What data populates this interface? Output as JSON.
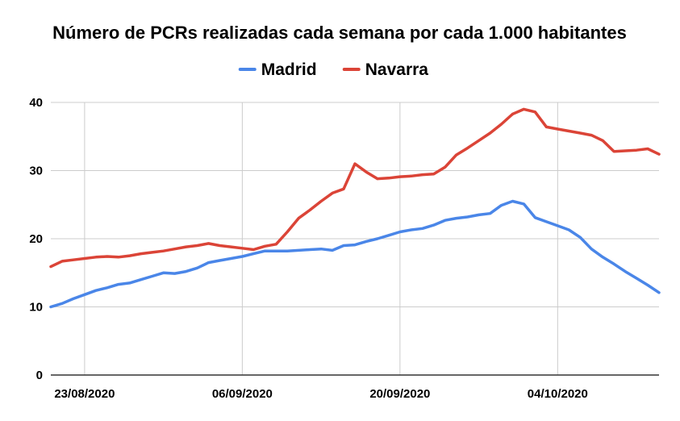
{
  "chart_data": {
    "type": "line",
    "title": "Número de PCRs realizadas cada semana por cada 1.000 habitantes",
    "xlabel": "",
    "ylabel": "",
    "ylim": [
      0,
      40
    ],
    "yticks": [
      0,
      10,
      20,
      30,
      40
    ],
    "x_tick_labels": [
      "23/08/2020",
      "06/09/2020",
      "20/09/2020",
      "04/10/2020"
    ],
    "x_tick_dates": [
      "2020-08-23",
      "2020-09-06",
      "2020-09-20",
      "2020-10-04"
    ],
    "x_range": [
      "2020-08-20",
      "2020-10-13"
    ],
    "grid": true,
    "legend_position": "top",
    "series": [
      {
        "name": "Madrid",
        "color": "#4a86e8",
        "x": [
          "2020-08-20",
          "2020-08-21",
          "2020-08-22",
          "2020-08-23",
          "2020-08-24",
          "2020-08-25",
          "2020-08-26",
          "2020-08-27",
          "2020-08-28",
          "2020-08-29",
          "2020-08-30",
          "2020-08-31",
          "2020-09-01",
          "2020-09-02",
          "2020-09-03",
          "2020-09-04",
          "2020-09-05",
          "2020-09-06",
          "2020-09-07",
          "2020-09-08",
          "2020-09-09",
          "2020-09-10",
          "2020-09-11",
          "2020-09-12",
          "2020-09-13",
          "2020-09-14",
          "2020-09-15",
          "2020-09-16",
          "2020-09-17",
          "2020-09-18",
          "2020-09-19",
          "2020-09-20",
          "2020-09-21",
          "2020-09-22",
          "2020-09-23",
          "2020-09-24",
          "2020-09-25",
          "2020-09-26",
          "2020-09-27",
          "2020-09-28",
          "2020-09-29",
          "2020-09-30",
          "2020-10-01",
          "2020-10-02",
          "2020-10-03",
          "2020-10-04",
          "2020-10-05",
          "2020-10-06",
          "2020-10-07",
          "2020-10-08",
          "2020-10-09",
          "2020-10-10",
          "2020-10-11",
          "2020-10-12",
          "2020-10-13"
        ],
        "values": [
          10.0,
          10.5,
          11.2,
          11.8,
          12.4,
          12.8,
          13.3,
          13.5,
          14.0,
          14.5,
          15.0,
          14.9,
          15.2,
          15.7,
          16.5,
          16.8,
          17.1,
          17.4,
          17.8,
          18.2,
          18.2,
          18.2,
          18.3,
          18.4,
          18.5,
          18.3,
          19.0,
          19.1,
          19.6,
          20.0,
          20.5,
          21.0,
          21.3,
          21.5,
          22.0,
          22.7,
          23.0,
          23.2,
          23.5,
          23.7,
          24.9,
          25.5,
          25.1,
          23.1,
          22.5,
          21.9,
          21.3,
          20.2,
          18.5,
          17.3,
          16.3,
          15.2,
          14.2,
          13.2,
          12.1
        ]
      },
      {
        "name": "Navarra",
        "color": "#db4437",
        "x": [
          "2020-08-20",
          "2020-08-21",
          "2020-08-22",
          "2020-08-23",
          "2020-08-24",
          "2020-08-25",
          "2020-08-26",
          "2020-08-27",
          "2020-08-28",
          "2020-08-29",
          "2020-08-30",
          "2020-08-31",
          "2020-09-01",
          "2020-09-02",
          "2020-09-03",
          "2020-09-04",
          "2020-09-05",
          "2020-09-06",
          "2020-09-07",
          "2020-09-08",
          "2020-09-09",
          "2020-09-10",
          "2020-09-11",
          "2020-09-12",
          "2020-09-13",
          "2020-09-14",
          "2020-09-15",
          "2020-09-16",
          "2020-09-17",
          "2020-09-18",
          "2020-09-19",
          "2020-09-20",
          "2020-09-21",
          "2020-09-22",
          "2020-09-23",
          "2020-09-24",
          "2020-09-25",
          "2020-09-26",
          "2020-09-27",
          "2020-09-28",
          "2020-09-29",
          "2020-09-30",
          "2020-10-01",
          "2020-10-02",
          "2020-10-03",
          "2020-10-04",
          "2020-10-05",
          "2020-10-06",
          "2020-10-07",
          "2020-10-08",
          "2020-10-09",
          "2020-10-10",
          "2020-10-11",
          "2020-10-12",
          "2020-10-13"
        ],
        "values": [
          15.9,
          16.7,
          16.9,
          17.1,
          17.3,
          17.4,
          17.3,
          17.5,
          17.8,
          18.0,
          18.2,
          18.5,
          18.8,
          19.0,
          19.3,
          19.0,
          18.8,
          18.6,
          18.4,
          18.9,
          19.2,
          21.0,
          23.0,
          24.2,
          25.5,
          26.7,
          27.3,
          31.0,
          29.8,
          28.8,
          28.9,
          29.1,
          29.2,
          29.4,
          29.5,
          30.5,
          32.3,
          33.3,
          34.4,
          35.5,
          36.8,
          38.3,
          39.0,
          38.6,
          36.4,
          36.1,
          35.8,
          35.5,
          35.2,
          34.4,
          32.8,
          32.9,
          33.0,
          33.2,
          32.4
        ]
      }
    ]
  }
}
